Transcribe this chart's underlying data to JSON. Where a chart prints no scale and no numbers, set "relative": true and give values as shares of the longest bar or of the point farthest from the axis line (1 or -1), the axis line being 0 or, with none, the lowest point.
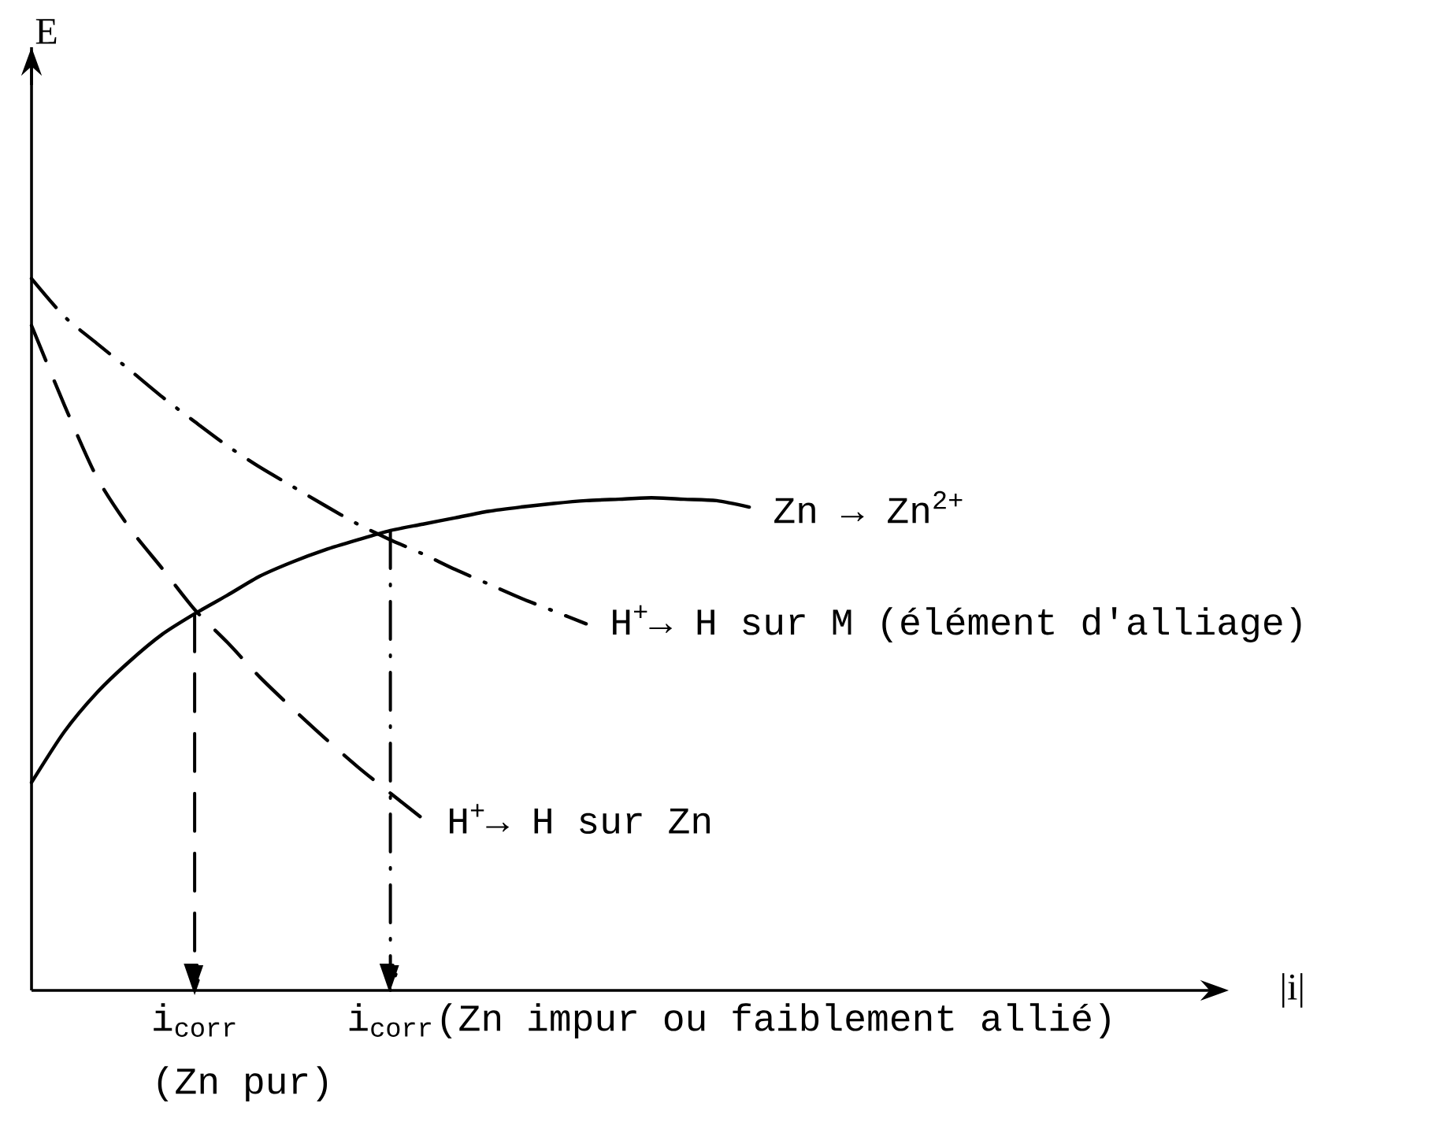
{
  "chart_data": {
    "type": "line",
    "relative": true,
    "xlabel": "|i|",
    "legend": false,
    "marker": "none",
    "categories": [
      null,
      null,
      null,
      null,
      null,
      "i$_{corr}$",
      null,
      null,
      null,
      null,
      null,
      "i$_{corr}$",
      null,
      null,
      null,
      null,
      null,
      null,
      null,
      null,
      null,
      null,
      null,
      null,
      null,
      null,
      null,
      null,
      null,
      null,
      null,
      null,
      null,
      null,
      null,
      null,
      null
    ],
    "series": [
      {
        "name": "Zn → Zn$^{2+}$",
        "color": "#000000",
        "line_style": "solid",
        "values": [
          0.292,
          0.363,
          0.418,
          0.462,
          0.5,
          0.529,
          0.555,
          0.582,
          0.602,
          0.619,
          0.633,
          0.646,
          0.655,
          0.664,
          0.673,
          0.679,
          0.684,
          0.688,
          0.69,
          0.692,
          0.69,
          0.688,
          0.679,
          null,
          null,
          null,
          null,
          null,
          null,
          null,
          null,
          null,
          null,
          null,
          null,
          null,
          null
        ]
      },
      {
        "name": "H$^{+}$→ H sur Zn",
        "color": "#000000",
        "line_style": "dashed",
        "values": [
          0.934,
          0.823,
          0.721,
          0.65,
          0.593,
          0.535,
          0.489,
          0.44,
          0.396,
          0.354,
          0.314,
          0.277,
          0.241,
          null,
          null,
          null,
          null,
          null,
          null,
          null,
          null,
          null,
          null,
          null,
          null,
          null,
          null,
          null,
          null,
          null,
          null,
          null,
          null,
          null,
          null,
          null,
          null
        ]
      },
      {
        "name": "H$^{+}$→ H sur M (élément d'alliage)",
        "color": "#000000",
        "line_style": "dashdot",
        "values": [
          1.0,
          0.947,
          0.909,
          0.872,
          0.834,
          0.799,
          0.765,
          0.735,
          0.708,
          0.681,
          0.655,
          0.633,
          0.613,
          0.591,
          0.571,
          0.551,
          0.533,
          0.515,
          null,
          null,
          null,
          null,
          null,
          null,
          null,
          null,
          null,
          null,
          null,
          null,
          null,
          null,
          null,
          null,
          null,
          null,
          null
        ]
      }
    ],
    "annotations": [
      "(Zn pur)",
      "(Zn impur ou faiblement allié)",
      "E"
    ]
  }
}
